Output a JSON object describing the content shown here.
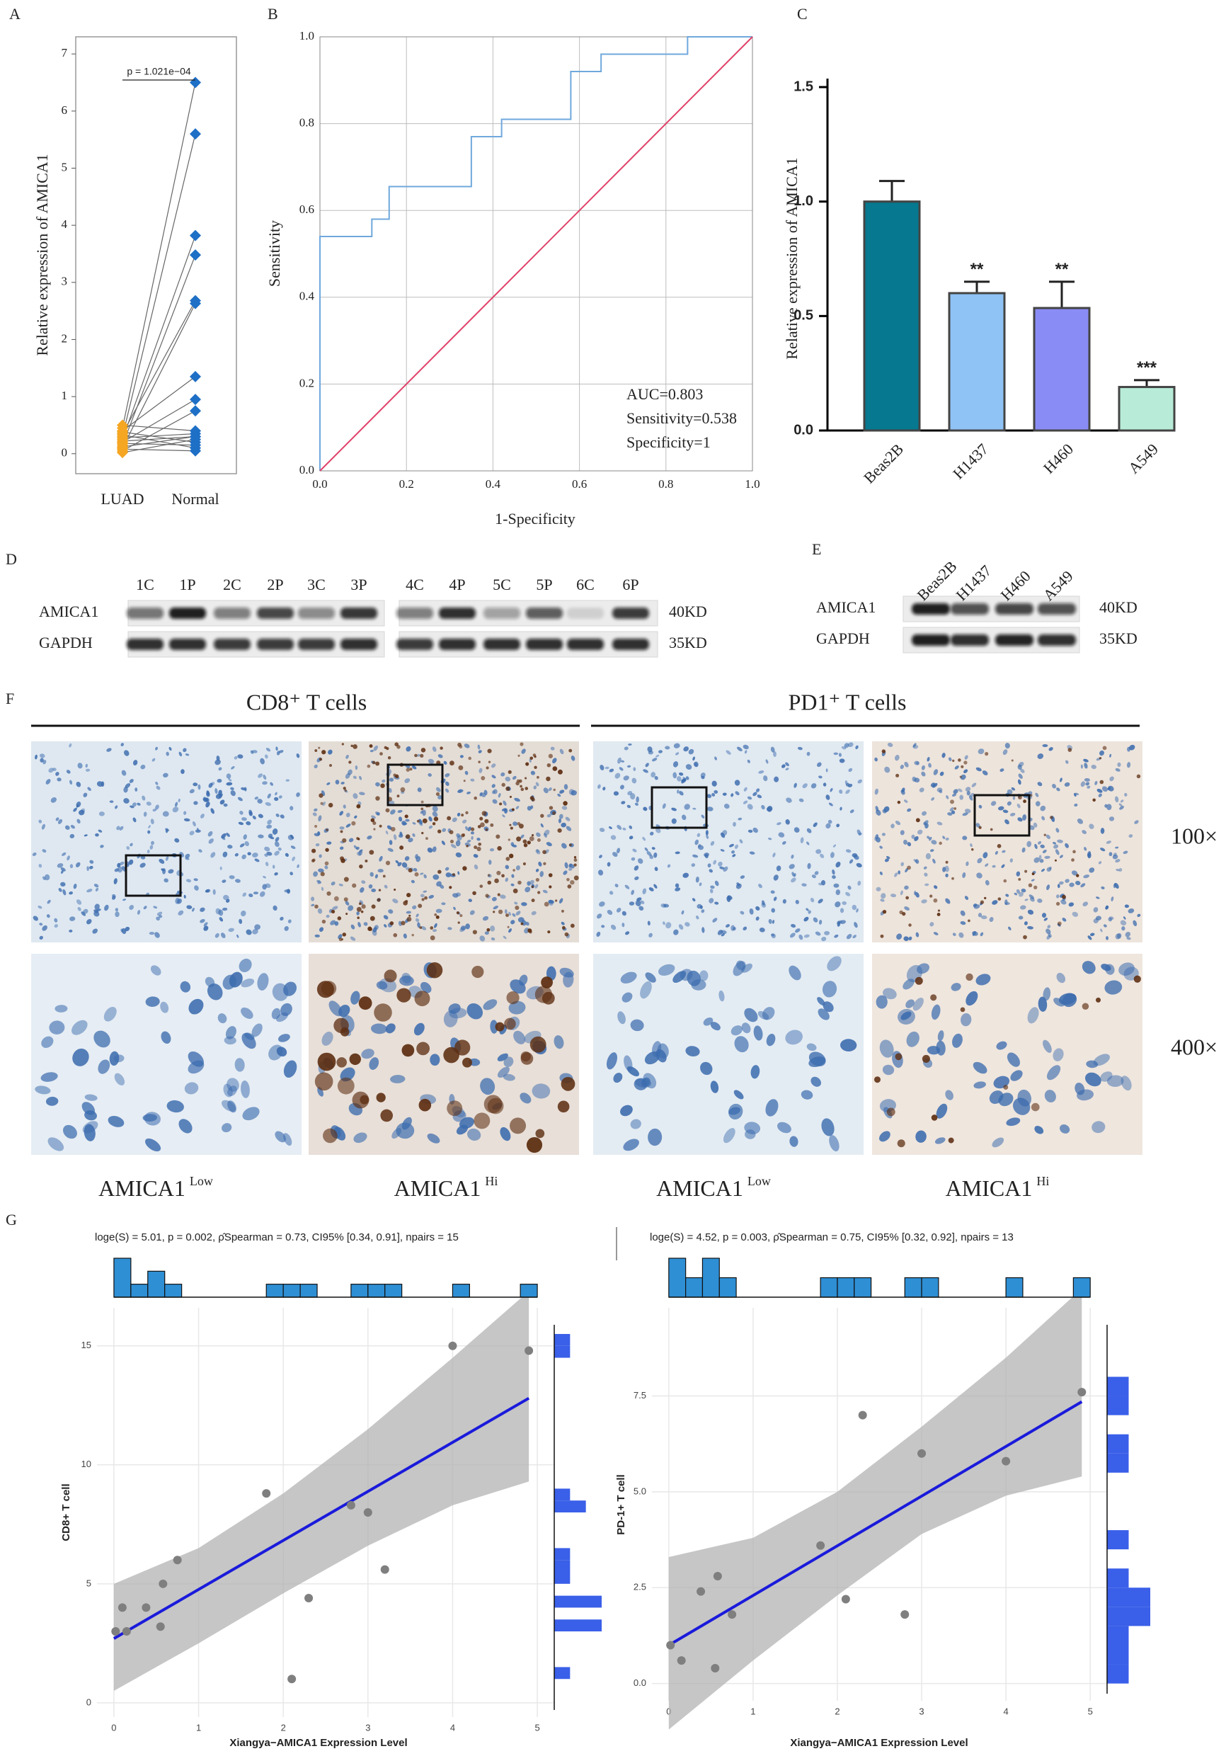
{
  "chart_data": [
    {
      "type": "paired",
      "panel_label": "A",
      "ylabel": "Relative expression of AMICA1",
      "categories": [
        "LUAD",
        "Normal"
      ],
      "colors": [
        "#f5a623",
        "#1e6fc6"
      ],
      "annotation": "p = 1.021e−04",
      "series": [
        {
          "values": [
            0.45,
            6.5
          ]
        },
        {
          "values": [
            0.3,
            5.6
          ]
        },
        {
          "values": [
            0.25,
            3.82
          ]
        },
        {
          "values": [
            0.15,
            3.48
          ]
        },
        {
          "values": [
            0.35,
            2.68
          ]
        },
        {
          "values": [
            0.1,
            2.63
          ]
        },
        {
          "values": [
            0.4,
            1.35
          ]
        },
        {
          "values": [
            0.2,
            0.95
          ]
        },
        {
          "values": [
            0.05,
            0.75
          ]
        },
        {
          "values": [
            0.5,
            0.4
          ]
        },
        {
          "values": [
            0.28,
            0.35
          ]
        },
        {
          "values": [
            0.12,
            0.3
          ]
        },
        {
          "values": [
            0.38,
            0.2
          ]
        },
        {
          "values": [
            0.18,
            0.15
          ]
        },
        {
          "values": [
            0.02,
            0.25
          ]
        },
        {
          "values": [
            0.33,
            0.1
          ]
        },
        {
          "values": [
            0.22,
            0.3
          ]
        },
        {
          "values": [
            0.08,
            0.05
          ]
        }
      ],
      "ylim": [
        -0.35,
        7.3
      ],
      "yticks": [
        0,
        1,
        2,
        3,
        4,
        5,
        6,
        7
      ]
    },
    {
      "type": "line",
      "panel_label": "B",
      "xlabel": "1-Specificity",
      "ylabel": "Sensitivity",
      "annotations": [
        "AUC=0.803",
        "Sensitivity=0.538",
        "Specificity=1"
      ],
      "series": [
        {
          "color": "#6fa8dc",
          "x": [
            0,
            0,
            0.12,
            0.12,
            0.16,
            0.16,
            0.35,
            0.35,
            0.42,
            0.42,
            0.58,
            0.58,
            0.65,
            0.65,
            0.85,
            0.85,
            1
          ],
          "values": [
            0,
            0.54,
            0.54,
            0.58,
            0.58,
            0.655,
            0.655,
            0.77,
            0.77,
            0.81,
            0.81,
            0.92,
            0.92,
            0.96,
            0.96,
            1,
            1
          ]
        },
        {
          "color": "#e0426a",
          "x": [
            0,
            1
          ],
          "values": [
            0,
            1
          ]
        }
      ],
      "xlim": [
        0,
        1
      ],
      "ylim": [
        0,
        1
      ],
      "grid": true,
      "xticks": [
        {
          "value": 0,
          "label": "0.0"
        },
        {
          "value": 0.2,
          "label": "0.2"
        },
        {
          "value": 0.4,
          "label": "0.4"
        },
        {
          "value": 0.6,
          "label": "0.6"
        },
        {
          "value": 0.8,
          "label": "0.8"
        },
        {
          "value": 1,
          "label": "1.0"
        }
      ],
      "yticks": [
        {
          "value": 0,
          "label": "0.0"
        },
        {
          "value": 0.2,
          "label": "0.2"
        },
        {
          "value": 0.4,
          "label": "0.4"
        },
        {
          "value": 0.6,
          "label": "0.6"
        },
        {
          "value": 0.8,
          "label": "0.8"
        },
        {
          "value": 1,
          "label": "1.0"
        }
      ]
    },
    {
      "type": "bar",
      "panel_label": "C",
      "ylabel": "Relative expression of AMICA1",
      "categories": [
        "Beas2B",
        "H1437",
        "H460",
        "A549"
      ],
      "values": [
        1.0,
        0.6,
        0.535,
        0.19
      ],
      "errors": [
        0.09,
        0.05,
        0.115,
        0.03
      ],
      "significance": [
        null,
        "**",
        "**",
        "***"
      ],
      "colors": [
        "#06788f",
        "#90c3f5",
        "#8a8cf5",
        "#b8ecd8"
      ],
      "ylim": [
        0,
        1.5
      ],
      "yticks": [
        {
          "value": 0,
          "label": "0.0"
        },
        {
          "value": 0.5,
          "label": "0.5"
        },
        {
          "value": 1,
          "label": "1.0"
        },
        {
          "value": 1.5,
          "label": "1.5"
        }
      ]
    },
    {
      "type": "scatter",
      "panel_label": "G",
      "subtitle": "loge(S) = 5.01, p = 0.002, ρ̂Spearman = 0.73, CI95% [0.34, 0.91], npairs = 15",
      "xlabel": "Xiangya−AMICA1 Expression Level",
      "ylabel": "CD8+ T cell",
      "color": "#7f7f7f",
      "x": [
        0.02,
        0.1,
        0.15,
        0.38,
        0.55,
        0.58,
        0.75,
        1.8,
        2.1,
        2.3,
        2.8,
        3.0,
        3.2,
        4.0,
        4.9
      ],
      "values": [
        3.0,
        4.0,
        3.0,
        4.0,
        3.2,
        5.0,
        6.0,
        8.8,
        1.0,
        4.4,
        8.3,
        8.0,
        5.6,
        15.0,
        14.8
      ],
      "fit": {
        "color": "#1a1adb",
        "x": [
          0,
          4.9
        ],
        "values": [
          2.7,
          12.8
        ]
      },
      "band": {
        "x": [
          0,
          1,
          2,
          3,
          4,
          4.9
        ],
        "upper": [
          5.0,
          6.5,
          8.8,
          11.5,
          14.5,
          17.3
        ],
        "lower": [
          0.5,
          2.5,
          4.6,
          6.6,
          8.3,
          9.3
        ]
      },
      "x_hist": {
        "color": "#2f8fd4",
        "bins": [
          0,
          0.2,
          0.4,
          0.6,
          0.8,
          1,
          1.2,
          1.4,
          1.6,
          1.8,
          2,
          2.2,
          2.4,
          2.6,
          2.8,
          3,
          3.2,
          3.4,
          3.6,
          3.8,
          4,
          4.2,
          4.4,
          4.6,
          4.8,
          5
        ],
        "counts": [
          3,
          1,
          2,
          1,
          0,
          0,
          0,
          0,
          0,
          1,
          1,
          1,
          0,
          0,
          1,
          1,
          1,
          0,
          0,
          0,
          1,
          0,
          0,
          0,
          1
        ]
      },
      "y_hist": {
        "color": "#3a5fe8",
        "bins": [
          0,
          0.5,
          1,
          1.5,
          2,
          2.5,
          3,
          3.5,
          4,
          4.5,
          5,
          5.5,
          6,
          6.5,
          7,
          7.5,
          8,
          8.5,
          9,
          9.5,
          10,
          10.5,
          11,
          11.5,
          12,
          12.5,
          13,
          13.5,
          14,
          14.5,
          15,
          15.5
        ],
        "counts": [
          0,
          0,
          1,
          0,
          0,
          0,
          3,
          0,
          3,
          0,
          1,
          1,
          1,
          0,
          0,
          0,
          2,
          1,
          0,
          0,
          0,
          0,
          0,
          0,
          0,
          0,
          0,
          0,
          0,
          1,
          1
        ]
      },
      "xlim": [
        -0.2,
        5.2
      ],
      "ylim": [
        -0.6,
        16.6
      ],
      "grid": true,
      "xticks": [
        0,
        1,
        2,
        3,
        4,
        5
      ],
      "yticks": [
        0,
        5,
        10,
        15
      ]
    },
    {
      "type": "scatter",
      "subtitle": "loge(S) = 4.52, p = 0.003, ρ̂Spearman = 0.75, CI95% [0.32, 0.92], npairs = 13",
      "xlabel": "Xiangya−AMICA1 Expression Level",
      "ylabel": "PD-1+ T cell",
      "color": "#7f7f7f",
      "x": [
        0.02,
        0.15,
        0.38,
        0.55,
        0.58,
        0.75,
        1.8,
        2.1,
        2.3,
        2.8,
        3.0,
        4.0,
        4.9
      ],
      "values": [
        1.0,
        0.6,
        2.4,
        0.4,
        2.8,
        1.8,
        3.6,
        2.2,
        7.0,
        1.8,
        6.0,
        5.8,
        7.6
      ],
      "fit": {
        "color": "#1a1adb",
        "x": [
          0,
          4.9
        ],
        "values": [
          1.0,
          7.35
        ]
      },
      "band": {
        "x": [
          0,
          1,
          2,
          3,
          4,
          4.9
        ],
        "upper": [
          3.3,
          3.8,
          5.0,
          6.7,
          8.5,
          10.3
        ],
        "lower": [
          -1.2,
          0.6,
          2.3,
          3.9,
          4.9,
          5.4
        ]
      },
      "x_hist": {
        "color": "#2f8fd4",
        "bins": [
          0,
          0.2,
          0.4,
          0.6,
          0.8,
          1,
          1.2,
          1.4,
          1.6,
          1.8,
          2,
          2.2,
          2.4,
          2.6,
          2.8,
          3,
          3.2,
          3.4,
          3.6,
          3.8,
          4,
          4.2,
          4.4,
          4.6,
          4.8,
          5
        ],
        "counts": [
          2,
          1,
          2,
          1,
          0,
          0,
          0,
          0,
          0,
          1,
          1,
          1,
          0,
          0,
          1,
          1,
          0,
          0,
          0,
          0,
          1,
          0,
          0,
          0,
          1
        ]
      },
      "y_hist": {
        "color": "#3a5fe8",
        "bins": [
          0,
          0.5,
          1,
          1.5,
          2,
          2.5,
          3,
          3.5,
          4,
          4.5,
          5,
          5.5,
          6,
          6.5,
          7,
          7.5,
          8
        ],
        "counts": [
          1,
          1,
          1,
          2,
          2,
          1,
          0,
          1,
          0,
          0,
          0,
          1,
          1,
          0,
          1,
          1
        ]
      },
      "xlim": [
        -0.2,
        5.2
      ],
      "ylim": [
        -0.45,
        9.8
      ],
      "grid": true,
      "xticks": [
        0,
        1,
        2,
        3,
        4,
        5
      ],
      "yticks": [
        {
          "value": 0,
          "label": "0.0"
        },
        {
          "value": 2.5,
          "label": "2.5"
        },
        {
          "value": 5,
          "label": "5.0"
        },
        {
          "value": 7.5,
          "label": "7.5"
        }
      ]
    }
  ],
  "western_blot_d": {
    "panel_label": "D",
    "lanes": [
      "1C",
      "1P",
      "2C",
      "2P",
      "3C",
      "3P",
      "4C",
      "4P",
      "5C",
      "5P",
      "6C",
      "6P"
    ],
    "rows": [
      {
        "label": "AMICA1",
        "size": "40KD"
      },
      {
        "label": "GAPDH",
        "size": "35KD"
      }
    ]
  },
  "western_blot_e": {
    "panel_label": "E",
    "lanes": [
      "Beas2B",
      "H1437",
      "H460",
      "A549"
    ],
    "rows": [
      {
        "label": "AMICA1",
        "size": "40KD"
      },
      {
        "label": "GAPDH",
        "size": "35KD"
      }
    ]
  },
  "ihc": {
    "panel_label": "F",
    "groups": [
      "CD8⁺ T cells",
      "PD1⁺ T cells"
    ],
    "magnifications": [
      "100×",
      "400×"
    ],
    "columns": [
      {
        "name": "AMICA1",
        "sup": "Low"
      },
      {
        "name": "AMICA1",
        "sup": "Hi"
      },
      {
        "name": "AMICA1",
        "sup": "Low"
      },
      {
        "name": "AMICA1",
        "sup": "Hi"
      }
    ]
  }
}
